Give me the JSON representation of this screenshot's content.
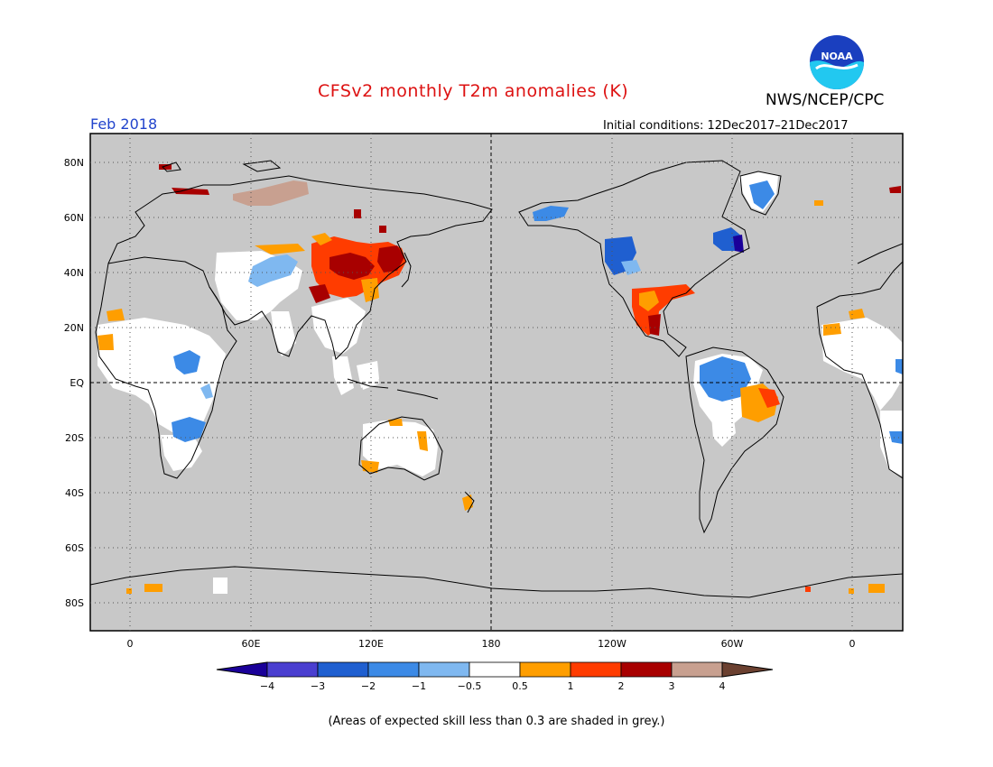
{
  "header": {
    "title": "CFSv2 monthly T2m anomalies (K)",
    "agency": "NWS/NCEP/CPC",
    "logo_text": "NOAA",
    "valid_month": "Feb 2018",
    "initial_conditions": "Initial conditions: 12Dec2017–21Dec2017"
  },
  "colors": {
    "title": "#dd1111",
    "month": "#2244cc",
    "ocean_grey": "#c8c8c8",
    "land_outline": "#000000"
  },
  "axes": {
    "lat_labels": [
      "80N",
      "60N",
      "40N",
      "20N",
      "EQ",
      "20S",
      "40S",
      "60S",
      "80S"
    ],
    "lon_labels": [
      "0",
      "60E",
      "120E",
      "180",
      "120W",
      "60W",
      "0"
    ]
  },
  "legend": {
    "labels": [
      "−4",
      "−3",
      "−2",
      "−1",
      "−0.5",
      "0.5",
      "1",
      "2",
      "3",
      "4"
    ],
    "bins": [
      {
        "color": "#1a0099"
      },
      {
        "color": "#4a3fd0"
      },
      {
        "color": "#1f5fd0"
      },
      {
        "color": "#3c8ae6"
      },
      {
        "color": "#7fb8f0"
      },
      {
        "color": "#ffffff"
      },
      {
        "color": "#ff9e00"
      },
      {
        "color": "#ff3c00"
      },
      {
        "color": "#a80000"
      },
      {
        "color": "#c8a090"
      },
      {
        "color": "#6b4030"
      }
    ]
  },
  "note": "(Areas of expected skill less than 0.3 are shaded in grey.)"
}
